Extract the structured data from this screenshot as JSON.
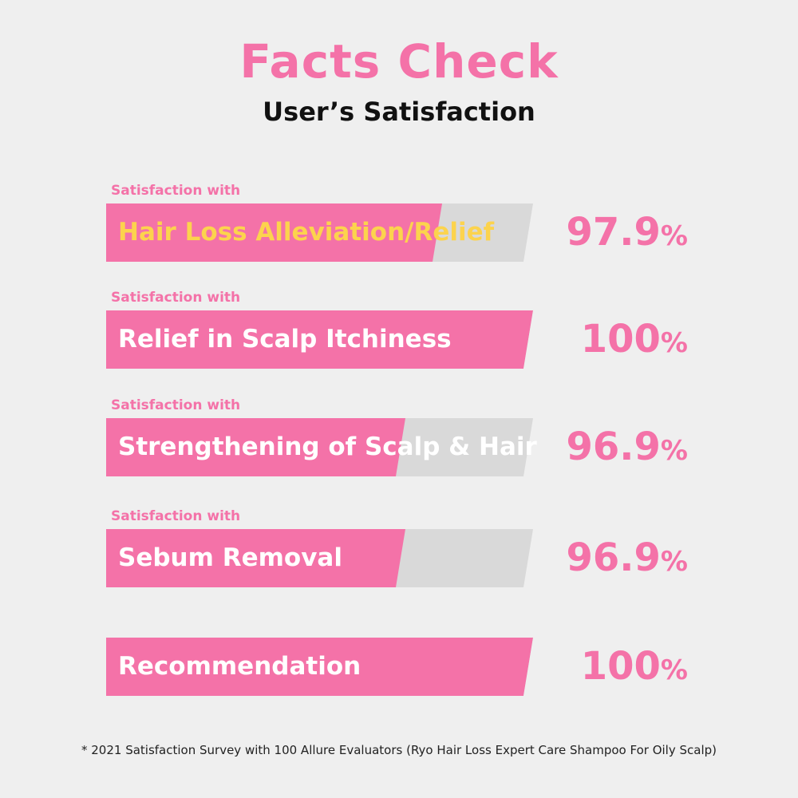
{
  "header": {
    "title": "Facts Check",
    "subtitle": "User’s Satisfaction"
  },
  "colors": {
    "background": "#efefef",
    "pink": "#f472a8",
    "track": "#d9d9d9",
    "highlight_text": "#fcd34d",
    "bar_text": "#ffffff"
  },
  "chart_data": {
    "type": "bar",
    "orientation": "horizontal",
    "title": "Facts Check",
    "subtitle": "User’s Satisfaction",
    "unit": "%",
    "xlim": [
      0,
      100
    ],
    "bars": [
      {
        "caption": "Satisfaction with",
        "label": "Hair Loss Alleviation/Relief",
        "value": 97.9,
        "value_text": "97.9",
        "highlight": true
      },
      {
        "caption": "Satisfaction with",
        "label": "Relief in Scalp Itchiness",
        "value": 100,
        "value_text": "100",
        "highlight": false
      },
      {
        "caption": "Satisfaction with",
        "label": "Strengthening of Scalp & Hair",
        "value": 96.9,
        "value_text": "96.9",
        "highlight": false
      },
      {
        "caption": "Satisfaction with",
        "label": "Sebum Removal",
        "value": 96.9,
        "value_text": "96.9",
        "highlight": false
      },
      {
        "caption": "",
        "label": "Recommendation",
        "value": 100,
        "value_text": "100",
        "highlight": false
      }
    ],
    "footnote": "* 2021 Satisfaction Survey with 100 Allure Evaluators (Ryo Hair Loss Expert Care Shampoo For Oily Scalp)"
  }
}
